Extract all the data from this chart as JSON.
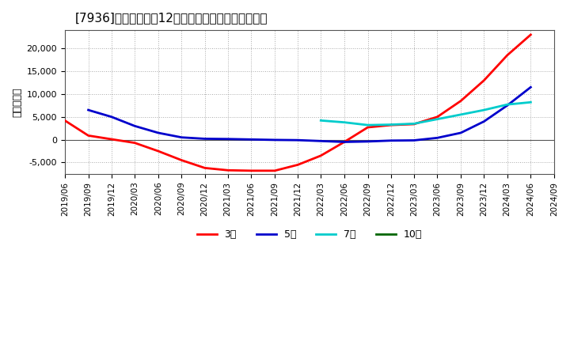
{
  "title": "[7936]　当期純利益12か月移動合計の平均値の推移",
  "ylabel": "（百万円）",
  "background_color": "#ffffff",
  "plot_bg_color": "#ffffff",
  "grid_color": "#aaaaaa",
  "ylim": [
    -7500,
    24000
  ],
  "yticks": [
    -5000,
    0,
    5000,
    10000,
    15000,
    20000
  ],
  "series": {
    "3年": {
      "color": "#ff0000",
      "dates": [
        "2019/06",
        "2019/09",
        "2019/12",
        "2020/03",
        "2020/06",
        "2020/09",
        "2020/12",
        "2021/03",
        "2021/06",
        "2021/09",
        "2021/12",
        "2022/03",
        "2022/06",
        "2022/09",
        "2022/12",
        "2023/03",
        "2023/06",
        "2023/09",
        "2023/12",
        "2024/03",
        "2024/06"
      ],
      "values": [
        4200,
        900,
        100,
        -700,
        -2500,
        -4500,
        -6200,
        -6700,
        -6800,
        -6800,
        -5500,
        -3500,
        -500,
        2700,
        3200,
        3400,
        5000,
        8500,
        13000,
        18500,
        23000
      ]
    },
    "5年": {
      "color": "#0000cc",
      "dates": [
        "2019/09",
        "2019/12",
        "2020/03",
        "2020/06",
        "2020/09",
        "2020/12",
        "2021/03",
        "2021/06",
        "2021/09",
        "2021/12",
        "2022/03",
        "2022/06",
        "2022/09",
        "2022/12",
        "2023/03",
        "2023/06",
        "2023/09",
        "2023/12",
        "2024/03",
        "2024/06"
      ],
      "values": [
        6500,
        5000,
        3000,
        1500,
        500,
        200,
        150,
        50,
        -50,
        -100,
        -300,
        -500,
        -400,
        -200,
        -150,
        400,
        1500,
        4000,
        7500,
        11500
      ]
    },
    "7年": {
      "color": "#00cccc",
      "dates": [
        "2022/03",
        "2022/06",
        "2022/09",
        "2022/12",
        "2023/03",
        "2023/06",
        "2023/09",
        "2023/12",
        "2024/03",
        "2024/06"
      ],
      "values": [
        4200,
        3800,
        3200,
        3300,
        3500,
        4500,
        5500,
        6500,
        7700,
        8200
      ]
    },
    "10年": {
      "color": "#006600",
      "dates": [],
      "values": []
    }
  },
  "legend_labels": [
    "3年",
    "5年",
    "7年",
    "10年"
  ],
  "legend_colors": [
    "#ff0000",
    "#0000cc",
    "#00cccc",
    "#006600"
  ]
}
